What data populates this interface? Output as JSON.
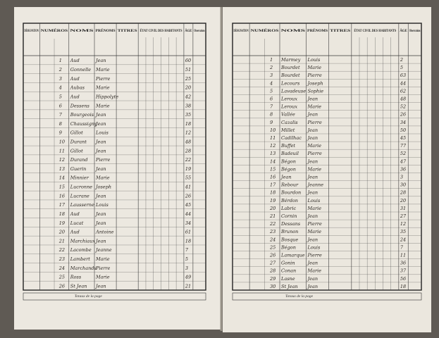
{
  "columns": [
    "DÉSIGNATION",
    "NUMÉROS",
    "NOMS",
    "PRÉNOMS",
    "TITRES",
    "ÉTAT CIVIL DES HABITANTS",
    "ÂGE",
    "Observations"
  ],
  "pages": [
    {
      "total_label": "Totaux de la page",
      "rows": [
        [
          "1",
          "Aud",
          "Jean",
          "60"
        ],
        [
          "2",
          "Gonnelle",
          "Marie",
          "51"
        ],
        [
          "3",
          "Aud",
          "Pierre",
          "25"
        ],
        [
          "4",
          "Aubas",
          "Marie",
          "20"
        ],
        [
          "5",
          "Aud",
          "Hippolyte",
          "42"
        ],
        [
          "6",
          "Dessens",
          "Marie",
          "38"
        ],
        [
          "7",
          "Bourgeois",
          "Jean",
          "35"
        ],
        [
          "8",
          "Chaussigny",
          "Jean",
          "18"
        ],
        [
          "9",
          "Gillot",
          "Louis",
          "12"
        ],
        [
          "10",
          "Durant",
          "Jean",
          "48"
        ],
        [
          "11",
          "Gillot",
          "Jean",
          "28"
        ],
        [
          "12",
          "Durand",
          "Pierre",
          "22"
        ],
        [
          "13",
          "Guerin",
          "Jean",
          "19"
        ],
        [
          "14",
          "Minnier",
          "Marie",
          "55"
        ],
        [
          "15",
          "Lucronne",
          "Joseph",
          "41"
        ],
        [
          "16",
          "Lucrane",
          "Jean",
          "26"
        ],
        [
          "17",
          "Lausserne",
          "Louis",
          "45"
        ],
        [
          "18",
          "Aud",
          "Jean",
          "44"
        ],
        [
          "19",
          "Lucat",
          "Jean",
          "34"
        ],
        [
          "20",
          "Aud",
          "Antoine",
          "61"
        ],
        [
          "21",
          "Marchiaux",
          "Jean",
          "18"
        ],
        [
          "22",
          "Lacombe",
          "Jeanne",
          "7"
        ],
        [
          "23",
          "Lambert",
          "Marie",
          "5"
        ],
        [
          "24",
          "Marchands",
          "Pierre",
          "3"
        ],
        [
          "25",
          "Ross",
          "Marie",
          "49"
        ],
        [
          "26",
          "St Jean",
          "Jean",
          "21"
        ]
      ]
    },
    {
      "total_label": "Totaux de la page",
      "rows": [
        [
          "1",
          "Marmey",
          "Louis",
          "2"
        ],
        [
          "2",
          "Bourdet",
          "Marie",
          "5"
        ],
        [
          "3",
          "Bourdet",
          "Pierre",
          "63"
        ],
        [
          "4",
          "Lecours",
          "Joseph",
          "44"
        ],
        [
          "5",
          "Lavadeuse",
          "Sophie",
          "62"
        ],
        [
          "6",
          "Leroux",
          "Jean",
          "48"
        ],
        [
          "7",
          "Leroux",
          "Marie",
          "52"
        ],
        [
          "8",
          "Vallée",
          "Jean",
          "26"
        ],
        [
          "9",
          "Cazalis",
          "Pierre",
          "34"
        ],
        [
          "10",
          "Millet",
          "Jean",
          "50"
        ],
        [
          "11",
          "Cadilhac",
          "Jean",
          "45"
        ],
        [
          "12",
          "Buffet",
          "Marie",
          "77"
        ],
        [
          "13",
          "Badeuil",
          "Pierre",
          "52"
        ],
        [
          "14",
          "Bégon",
          "Jean",
          "47"
        ],
        [
          "15",
          "Bégon",
          "Marie",
          "36"
        ],
        [
          "16",
          "Jean",
          "Jean",
          "3"
        ],
        [
          "17",
          "Rebour",
          "Jeanne",
          "30"
        ],
        [
          "18",
          "Bourdon",
          "Jean",
          "28"
        ],
        [
          "19",
          "Bérdon",
          "Louis",
          "20"
        ],
        [
          "20",
          "Labric",
          "Marie",
          "31"
        ],
        [
          "21",
          "Cornin",
          "Jean",
          "27"
        ],
        [
          "22",
          "Dessans",
          "Pierre",
          "12"
        ],
        [
          "23",
          "Brunon",
          "Marie",
          "35"
        ],
        [
          "24",
          "Bosque",
          "Jean",
          "24"
        ],
        [
          "25",
          "Bégon",
          "Louis",
          "7"
        ],
        [
          "26",
          "Lamarque",
          "Pierre",
          "11"
        ],
        [
          "27",
          "Gonin",
          "Jean",
          "36"
        ],
        [
          "28",
          "Conan",
          "Marie",
          "37"
        ],
        [
          "29",
          "Lasne",
          "Jean",
          "56"
        ],
        [
          "30",
          "St Jean",
          "Jean",
          "18"
        ]
      ]
    }
  ]
}
